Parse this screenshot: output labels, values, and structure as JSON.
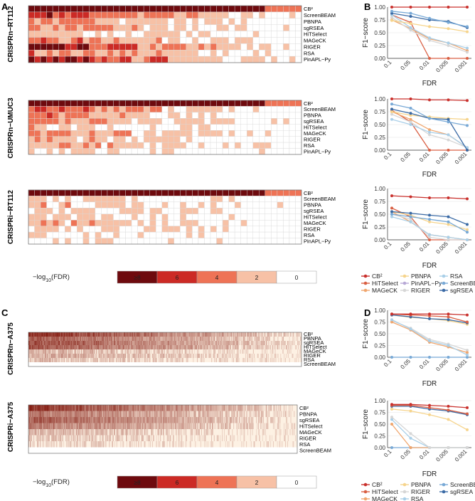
{
  "panel_letters": [
    "A",
    "B",
    "C",
    "D"
  ],
  "legend_scale": {
    "label_prefix": "−log",
    "label_sub": "10",
    "label_suffix": "(FDR)",
    "bins": [
      "≥8",
      "6",
      "4",
      "2",
      "0"
    ],
    "colors": [
      "#6e0a0e",
      "#cc2a25",
      "#ee7356",
      "#f7c1a6",
      "#ffffff"
    ]
  },
  "method_colors": {
    "CB²": "#c9302c",
    "HiTSelect": "#d95f43",
    "MAGeCK": "#f0a66e",
    "PBNPA": "#f6d48c",
    "PinAPL-Py": "#b8a9d6",
    "RIGER": "#d6d6d6",
    "RSA": "#a9cfe8",
    "ScreenBEAM": "#78a9d6",
    "sgRSEA": "#3a6aa5"
  },
  "legend_B": [
    "CB²",
    "PBNPA",
    "RSA",
    "HiTSelect",
    "PinAPL−Py",
    "ScreenBEAM",
    "MAGeCK",
    "RIGER",
    "sgRSEA"
  ],
  "legend_D": [
    "CB²",
    "PBNPA",
    "ScreenBEAM",
    "HiTSelect",
    "RIGER",
    "sgRSEA",
    "MAGeCK",
    "RSA"
  ],
  "chart_data": [
    {
      "type": "heatmap",
      "panel": "A",
      "title": "CRISPRn−RT112",
      "rows": [
        "CB²",
        "ScreenBEAM",
        "PBNPA",
        "sgRSEA",
        "HiTSelect",
        "MAGeCK",
        "RIGER",
        "RSA",
        "PinAPL−Py"
      ],
      "n_genes": 45,
      "legend": "−log10(FDR)"
    },
    {
      "type": "heatmap",
      "panel": "A",
      "title": "CRISPRn−UMUC3",
      "rows": [
        "CB²",
        "ScreenBEAM",
        "PBNPA",
        "sgRSEA",
        "HiTSelect",
        "MAGeCK",
        "RIGER",
        "RSA",
        "PinAPL−Py"
      ],
      "n_genes": 45,
      "legend": "−log10(FDR)"
    },
    {
      "type": "heatmap",
      "panel": "A",
      "title": "CRISPRi−RT112",
      "rows": [
        "CB²",
        "ScreenBEAM",
        "PBNPA",
        "sgRSEA",
        "HiTSelect",
        "MAGeCK",
        "RIGER",
        "RSA",
        "PinAPL−Py"
      ],
      "n_genes": 45,
      "legend": "−log10(FDR)"
    },
    {
      "type": "heatmap",
      "panel": "C",
      "title": "CRISPRn−A375",
      "rows": [
        "CB²",
        "PBNPA",
        "sgRSEA",
        "HiTSelect",
        "MAGeCK",
        "RIGER",
        "RSA",
        "ScreenBEAM"
      ],
      "n_genes": 400,
      "legend": "−log10(FDR)"
    },
    {
      "type": "heatmap",
      "panel": "C",
      "title": "CRISPRi−A375",
      "rows": [
        "CB²",
        "PBNPA",
        "sgRSEA",
        "HiTSelect",
        "MAGeCK",
        "RIGER",
        "RSA",
        "ScreenBEAM"
      ],
      "n_genes": 400,
      "legend": "−log10(FDR)"
    },
    {
      "type": "line",
      "panel": "B",
      "xlabel": "FDR",
      "ylabel": "F1−score",
      "categories": [
        "0.1",
        "0.05",
        "0.01",
        "0.005",
        "0.001"
      ],
      "ylim": [
        0,
        1
      ],
      "yticks": [
        "0.00",
        "0.25",
        "0.50",
        "0.75",
        "1.00"
      ],
      "series": [
        {
          "name": "CB²",
          "values": [
            1.0,
            1.0,
            1.0,
            1.0,
            1.0
          ]
        },
        {
          "name": "ScreenBEAM",
          "values": [
            0.92,
            0.88,
            0.78,
            0.7,
            0.62
          ]
        },
        {
          "name": "sgRSEA",
          "values": [
            0.88,
            0.82,
            0.75,
            0.72,
            0.6
          ]
        },
        {
          "name": "PBNPA",
          "values": [
            0.74,
            0.68,
            0.62,
            0.58,
            0.52
          ]
        },
        {
          "name": "RSA",
          "values": [
            0.85,
            0.6,
            0.4,
            0.3,
            0.2
          ]
        },
        {
          "name": "RIGER",
          "values": [
            0.8,
            0.55,
            0.35,
            0.25,
            0.12
          ]
        },
        {
          "name": "MAGeCK",
          "values": [
            0.75,
            0.58,
            0.38,
            0.3,
            0.15
          ]
        },
        {
          "name": "HiTSelect",
          "values": [
            0.85,
            0.7,
            0.0,
            0.0,
            0.0
          ]
        }
      ]
    },
    {
      "type": "line",
      "panel": "B",
      "xlabel": "FDR",
      "ylabel": "F1−score",
      "categories": [
        "0.1",
        "0.05",
        "0.01",
        "0.005",
        "0.001"
      ],
      "ylim": [
        0,
        1
      ],
      "yticks": [
        "0.00",
        "0.25",
        "0.50",
        "0.75",
        "1.00"
      ],
      "series": [
        {
          "name": "CB²",
          "values": [
            1.0,
            1.0,
            0.98,
            0.98,
            0.97
          ]
        },
        {
          "name": "ScreenBEAM",
          "values": [
            0.9,
            0.82,
            0.62,
            0.55,
            0.48
          ]
        },
        {
          "name": "sgRSEA",
          "values": [
            0.8,
            0.72,
            0.62,
            0.6,
            0.0
          ]
        },
        {
          "name": "PBNPA",
          "values": [
            0.75,
            0.68,
            0.65,
            0.62,
            0.6
          ]
        },
        {
          "name": "RSA",
          "values": [
            0.6,
            0.5,
            0.35,
            0.3,
            0.05
          ]
        },
        {
          "name": "RIGER",
          "values": [
            0.7,
            0.55,
            0.3,
            0.2,
            0.05
          ]
        },
        {
          "name": "MAGeCK",
          "values": [
            0.75,
            0.6,
            0.4,
            0.3,
            0.05
          ]
        },
        {
          "name": "HiTSelect",
          "values": [
            0.78,
            0.55,
            0.0,
            0.0,
            0.0
          ]
        }
      ]
    },
    {
      "type": "line",
      "panel": "B",
      "xlabel": "FDR",
      "ylabel": "F1−score",
      "categories": [
        "0.1",
        "0.05",
        "0.01",
        "0.005",
        "0.001"
      ],
      "ylim": [
        0,
        1
      ],
      "yticks": [
        "0.00",
        "0.25",
        "0.50",
        "0.75",
        "1.00"
      ],
      "series": [
        {
          "name": "CB²",
          "values": [
            0.86,
            0.84,
            0.82,
            0.82,
            0.8
          ]
        },
        {
          "name": "sgRSEA",
          "values": [
            0.55,
            0.52,
            0.48,
            0.45,
            0.3
          ]
        },
        {
          "name": "ScreenBEAM",
          "values": [
            0.5,
            0.45,
            0.4,
            0.35,
            0.15
          ]
        },
        {
          "name": "PBNPA",
          "values": [
            0.55,
            0.48,
            0.35,
            0.3,
            0.2
          ]
        },
        {
          "name": "RSA",
          "values": [
            0.45,
            0.35,
            0.1,
            0.05,
            0.0
          ]
        },
        {
          "name": "RIGER",
          "values": [
            0.5,
            0.4,
            0.05,
            0.0,
            0.0
          ]
        },
        {
          "name": "MAGeCK",
          "values": [
            0.55,
            0.35,
            0.1,
            0.05,
            0.0
          ]
        },
        {
          "name": "HiTSelect",
          "values": [
            0.62,
            0.45,
            0.0,
            0.0,
            0.0
          ]
        }
      ]
    },
    {
      "type": "line",
      "panel": "D",
      "xlabel": "FDR",
      "ylabel": "F1−score",
      "categories": [
        "0.1",
        "0.05",
        "0.01",
        "0.005",
        "0.001"
      ],
      "ylim": [
        0,
        1
      ],
      "yticks": [
        "0.00",
        "0.25",
        "0.50",
        "0.75",
        "1.00"
      ],
      "series": [
        {
          "name": "CB²",
          "values": [
            0.92,
            0.92,
            0.92,
            0.92,
            0.9
          ]
        },
        {
          "name": "HiTSelect",
          "values": [
            0.92,
            0.9,
            0.88,
            0.86,
            0.75
          ]
        },
        {
          "name": "sgRSEA",
          "values": [
            0.9,
            0.86,
            0.82,
            0.8,
            0.73
          ]
        },
        {
          "name": "PBNPA",
          "values": [
            0.9,
            0.85,
            0.82,
            0.78,
            0.7
          ]
        },
        {
          "name": "RSA",
          "values": [
            0.8,
            0.6,
            0.35,
            0.25,
            0.05
          ]
        },
        {
          "name": "MAGeCK",
          "values": [
            0.75,
            0.58,
            0.32,
            0.22,
            0.1
          ]
        },
        {
          "name": "RIGER",
          "values": [
            0.78,
            0.62,
            0.38,
            0.28,
            0.15
          ]
        },
        {
          "name": "ScreenBEAM",
          "values": [
            0.0,
            0.0,
            0.0,
            0.0,
            0.0
          ]
        }
      ]
    },
    {
      "type": "line",
      "panel": "D",
      "xlabel": "FDR",
      "ylabel": "F1−score",
      "categories": [
        "0.1",
        "0.05",
        "0.01",
        "0.005",
        "0.001"
      ],
      "ylim": [
        0,
        1
      ],
      "yticks": [
        "0.00",
        "0.25",
        "0.50",
        "0.75",
        "1.00"
      ],
      "series": [
        {
          "name": "CB²",
          "values": [
            0.92,
            0.92,
            0.9,
            0.88,
            0.85
          ]
        },
        {
          "name": "HiTSelect",
          "values": [
            0.9,
            0.9,
            0.85,
            0.8,
            0.72
          ]
        },
        {
          "name": "sgRSEA",
          "values": [
            0.88,
            0.88,
            0.82,
            0.78,
            0.7
          ]
        },
        {
          "name": "PBNPA",
          "values": [
            0.82,
            0.78,
            0.7,
            0.6,
            0.38
          ]
        },
        {
          "name": "RIGER",
          "values": [
            0.65,
            0.3,
            0.0,
            0.0,
            0.0
          ]
        },
        {
          "name": "RSA",
          "values": [
            0.6,
            0.2,
            0.0,
            0.0,
            0.0
          ]
        },
        {
          "name": "MAGeCK",
          "values": [
            0.5,
            0.0,
            0.0,
            0.0,
            0.0
          ]
        },
        {
          "name": "ScreenBEAM",
          "values": [
            0.0,
            0.0,
            0.0,
            0.0,
            0.0
          ]
        }
      ]
    }
  ]
}
